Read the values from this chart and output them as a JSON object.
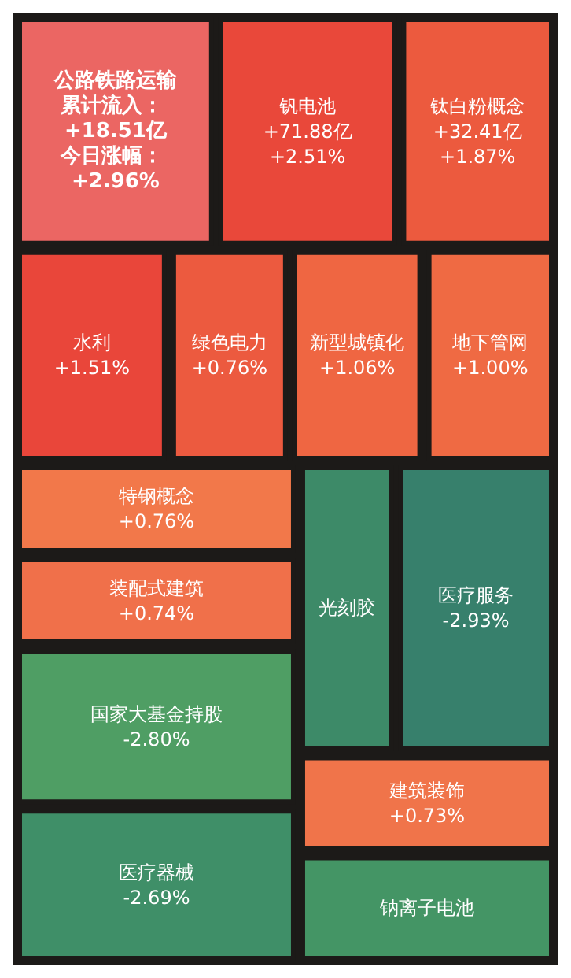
{
  "chart_data": {
    "type": "other",
    "categories": [
      "公路铁路运输",
      "钒电池",
      "钛白粉概念",
      "水利",
      "绿色电力",
      "新型城镇化",
      "地下管网",
      "特钢概念",
      "装配式建筑",
      "国家大基金持股",
      "医疗器械",
      "光刻胶",
      "医疗服务",
      "建筑装饰",
      "钠离子电池"
    ],
    "values": [
      2.96,
      2.51,
      1.87,
      1.51,
      0.76,
      1.06,
      1.0,
      0.76,
      0.74,
      -2.8,
      -2.69,
      null,
      -2.93,
      0.73,
      null
    ],
    "annotations": [
      {
        "text": "累计流入： +18.51亿",
        "x": "公路铁路运输"
      },
      {
        "text": "+71.88亿",
        "x": "钒电池"
      },
      {
        "text": "+32.41亿",
        "x": "钛白粉概念"
      }
    ],
    "value_labels": [
      "今日涨幅： +2.96%",
      "+2.51%",
      "+1.87%",
      "+1.51%",
      "+0.76%",
      "+1.06%",
      "+1.00%",
      "+0.76%",
      "+0.74%",
      "-2.80%",
      "-2.69%",
      null,
      "-2.93%",
      "+0.73%",
      null
    ],
    "colors": [
      "#eb6663",
      "#e9483a",
      "#ec5a3e",
      "#e9463a",
      "#ec5a3f",
      "#ef6642",
      "#ef6a43",
      "#f2784a",
      "#f0704a",
      "#4f9e64",
      "#3f8f68",
      "#3d8a68",
      "#37806c",
      "#f0744a",
      "#449565"
    ]
  }
}
